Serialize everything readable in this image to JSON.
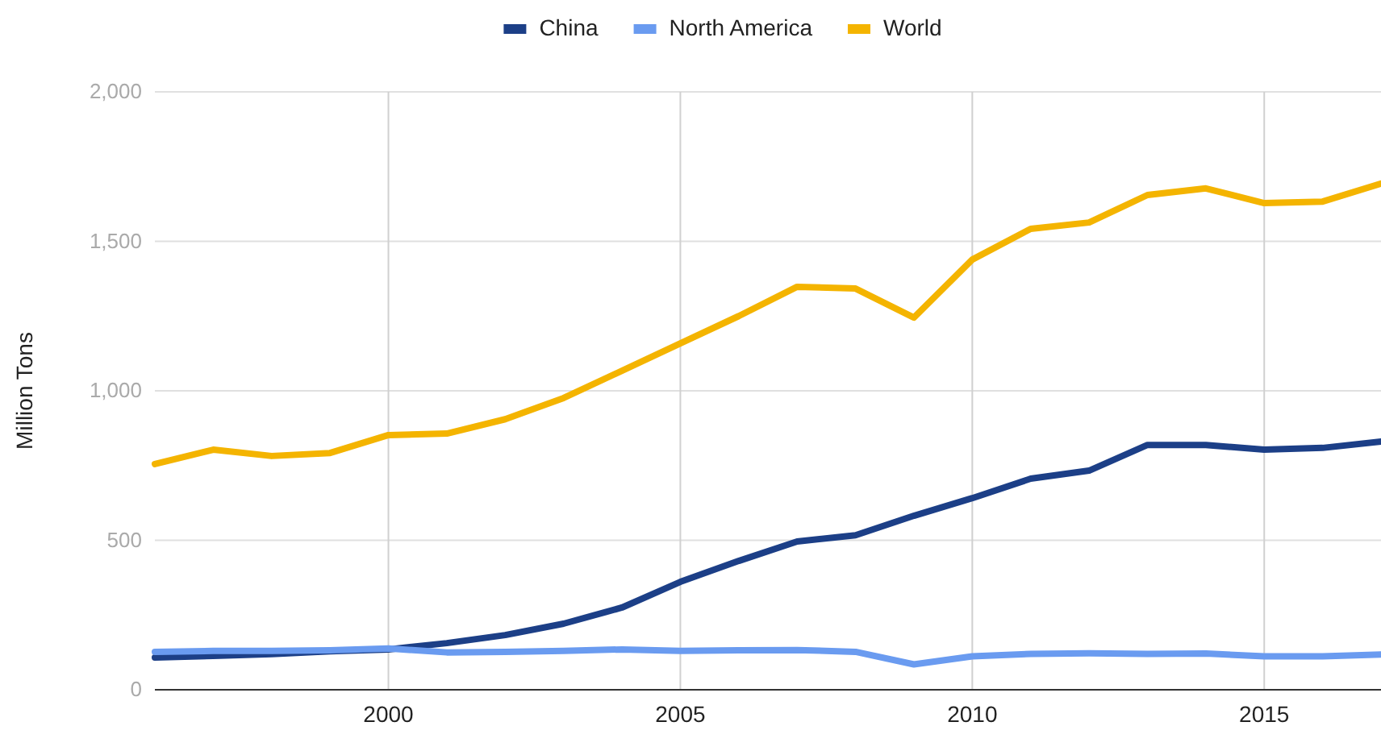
{
  "chart_data": {
    "type": "line",
    "ylabel": "Million Tons",
    "x": [
      1996,
      1997,
      1998,
      1999,
      2000,
      2001,
      2002,
      2003,
      2004,
      2005,
      2006,
      2007,
      2008,
      2009,
      2010,
      2011,
      2012,
      2013,
      2014,
      2015,
      2016,
      2017
    ],
    "series": [
      {
        "name": "China",
        "color": "#1c3f87",
        "values": [
          108,
          113,
          119,
          129,
          135,
          156,
          183,
          221,
          275,
          361,
          431,
          496,
          517,
          582,
          641,
          706,
          733,
          819,
          819,
          803,
          809,
          830
        ]
      },
      {
        "name": "North America",
        "color": "#6a9bf0",
        "values": [
          127,
          130,
          130,
          132,
          138,
          125,
          127,
          130,
          135,
          130,
          132,
          133,
          127,
          85,
          112,
          120,
          122,
          120,
          121,
          112,
          112,
          118
        ]
      },
      {
        "name": "World",
        "color": "#f4b400",
        "values": [
          755,
          803,
          782,
          792,
          852,
          857,
          905,
          976,
          1067,
          1159,
          1250,
          1348,
          1342,
          1245,
          1439,
          1542,
          1563,
          1655,
          1677,
          1628,
          1633,
          1693
        ]
      }
    ],
    "xlim": [
      1996,
      2017
    ],
    "xticks": [
      2000,
      2005,
      2010,
      2015
    ],
    "ylim": [
      0,
      2000
    ],
    "yticks": [
      {
        "value": 0,
        "label": "0"
      },
      {
        "value": 500,
        "label": "500"
      },
      {
        "value": 1000,
        "label": "1,000"
      },
      {
        "value": 1500,
        "label": "1,500"
      },
      {
        "value": 2000,
        "label": "2,000"
      }
    ],
    "grid": true,
    "legend": "top"
  }
}
